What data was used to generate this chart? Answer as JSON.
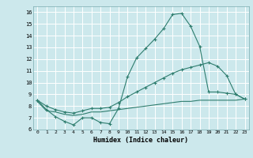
{
  "xlabel": "Humidex (Indice chaleur)",
  "bg_color": "#cce8ec",
  "grid_color": "#ffffff",
  "line_color": "#2e7d6e",
  "xlim": [
    -0.5,
    23.5
  ],
  "ylim": [
    6.0,
    16.5
  ],
  "xticks": [
    0,
    1,
    2,
    3,
    4,
    5,
    6,
    7,
    8,
    9,
    10,
    11,
    12,
    13,
    14,
    15,
    16,
    17,
    18,
    19,
    20,
    21,
    22,
    23
  ],
  "yticks": [
    6,
    7,
    8,
    9,
    10,
    11,
    12,
    13,
    14,
    15,
    16
  ],
  "curve1_x": [
    0,
    1,
    2,
    3,
    4,
    5,
    6,
    7,
    8,
    9,
    10,
    11,
    12,
    13,
    14,
    15,
    16,
    17,
    18,
    19,
    20,
    21,
    22,
    23
  ],
  "curve1_y": [
    8.5,
    7.7,
    7.1,
    6.7,
    6.4,
    7.0,
    7.0,
    6.6,
    6.5,
    7.8,
    10.5,
    12.1,
    12.9,
    13.7,
    14.6,
    15.8,
    15.9,
    14.8,
    13.1,
    9.2,
    9.2,
    9.1,
    9.0,
    8.6
  ],
  "curve2_x": [
    0,
    1,
    2,
    3,
    4,
    5,
    6,
    7,
    8,
    9,
    10,
    11,
    12,
    13,
    14,
    15,
    16,
    17,
    18,
    19,
    20,
    21,
    22,
    23
  ],
  "curve2_y": [
    8.5,
    8.0,
    7.7,
    7.5,
    7.4,
    7.6,
    7.8,
    7.8,
    7.9,
    8.3,
    8.8,
    9.2,
    9.6,
    10.0,
    10.4,
    10.8,
    11.1,
    11.3,
    11.5,
    11.7,
    11.4,
    10.6,
    9.0,
    8.6
  ],
  "curve3_x": [
    0,
    1,
    2,
    3,
    4,
    5,
    6,
    7,
    8,
    9,
    10,
    11,
    12,
    13,
    14,
    15,
    16,
    17,
    18,
    19,
    20,
    21,
    22,
    23
  ],
  "curve3_y": [
    8.4,
    7.6,
    7.5,
    7.3,
    7.2,
    7.3,
    7.5,
    7.5,
    7.6,
    7.7,
    7.8,
    7.9,
    8.0,
    8.1,
    8.2,
    8.3,
    8.4,
    8.4,
    8.5,
    8.5,
    8.5,
    8.5,
    8.5,
    8.6
  ]
}
